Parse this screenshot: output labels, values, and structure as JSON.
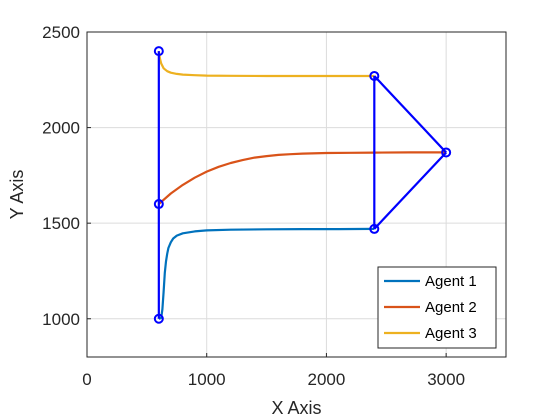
{
  "chart_data": {
    "type": "line",
    "title": "",
    "xlabel": "X Axis",
    "ylabel": "Y Axis",
    "xlim": [
      0,
      3500
    ],
    "ylim": [
      800,
      2500
    ],
    "xticks": [
      0,
      1000,
      2000,
      3000
    ],
    "yticks": [
      1000,
      1500,
      2000,
      2500
    ],
    "grid": true,
    "legend_position": "bottom-right",
    "series": [
      {
        "name": "Agent 1",
        "color": "#0072BD",
        "x": [
          600,
          620,
          630,
          640,
          650,
          660,
          670,
          680,
          700,
          720,
          750,
          800,
          900,
          1000,
          1200,
          1500,
          1800,
          2100,
          2400
        ],
        "y": [
          1000,
          1005,
          1050,
          1140,
          1240,
          1300,
          1340,
          1370,
          1400,
          1420,
          1435,
          1447,
          1457,
          1462,
          1466,
          1468,
          1469,
          1469,
          1470
        ]
      },
      {
        "name": "Agent 2",
        "color": "#D95319",
        "x": [
          600,
          700,
          800,
          900,
          1000,
          1100,
          1200,
          1300,
          1400,
          1500,
          1600,
          1700,
          1800,
          2000,
          2200,
          2400,
          2700,
          3000
        ],
        "y": [
          1600,
          1655,
          1700,
          1738,
          1770,
          1795,
          1815,
          1830,
          1843,
          1851,
          1857,
          1861,
          1864,
          1867,
          1868,
          1869,
          1870,
          1870
        ]
      },
      {
        "name": "Agent 3",
        "color": "#EDB120",
        "x": [
          600,
          610,
          620,
          640,
          670,
          700,
          750,
          800,
          900,
          1000,
          1200,
          1500,
          1800,
          2100,
          2400
        ],
        "y": [
          2400,
          2360,
          2335,
          2310,
          2295,
          2287,
          2281,
          2277,
          2274,
          2272,
          2271,
          2270,
          2270,
          2270,
          2270
        ]
      }
    ],
    "formation_lines": {
      "color": "#0000FF",
      "segments": [
        [
          [
            600,
            1000
          ],
          [
            600,
            2400
          ]
        ],
        [
          [
            2400,
            2270
          ],
          [
            2400,
            1470
          ]
        ],
        [
          [
            2400,
            2270
          ],
          [
            3000,
            1870
          ]
        ],
        [
          [
            2400,
            1470
          ],
          [
            3000,
            1870
          ]
        ]
      ],
      "markers": [
        [
          600,
          2400
        ],
        [
          600,
          1600
        ],
        [
          600,
          1000
        ],
        [
          2400,
          2270
        ],
        [
          2400,
          1470
        ],
        [
          3000,
          1870
        ]
      ]
    }
  }
}
